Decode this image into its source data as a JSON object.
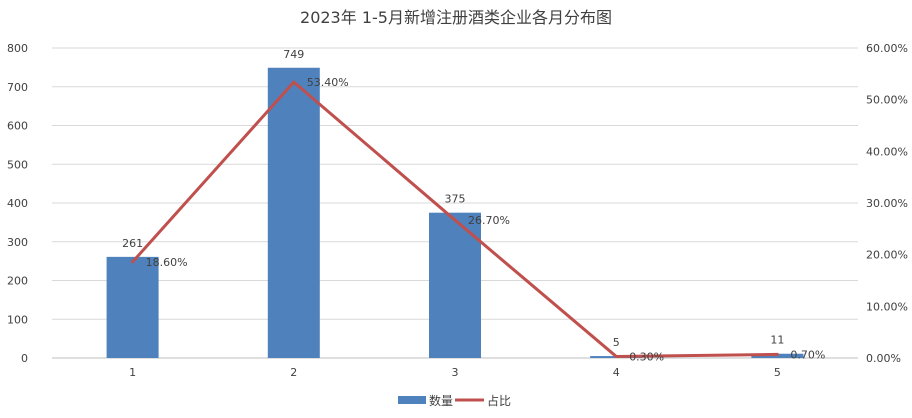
{
  "chart_data": {
    "type": "bar",
    "title": "2023年 1-5月新增注册酒类企业各月分布图",
    "categories": [
      "1",
      "2",
      "3",
      "4",
      "5"
    ],
    "series": [
      {
        "name": "数量",
        "type": "bar",
        "axis": "left",
        "values": [
          261,
          749,
          375,
          5,
          11
        ],
        "labels": [
          "261",
          "749",
          "375",
          "5",
          "11"
        ],
        "color": "#4F81BD"
      },
      {
        "name": "占比",
        "type": "line",
        "axis": "right",
        "values": [
          0.186,
          0.534,
          0.267,
          0.003,
          0.007
        ],
        "labels": [
          "18.60%",
          "53.40%",
          "26.70%",
          "0.30%",
          "0.70%"
        ],
        "color": "#C0504D"
      }
    ],
    "y_left": {
      "ylim": [
        0,
        800
      ],
      "ticks": [
        "0",
        "100",
        "200",
        "300",
        "400",
        "500",
        "600",
        "700",
        "800"
      ]
    },
    "y_right": {
      "ylim": [
        0,
        0.6
      ],
      "ticks": [
        "0.00%",
        "10.00%",
        "20.00%",
        "30.00%",
        "40.00%",
        "50.00%",
        "60.00%"
      ]
    },
    "grid": true,
    "legend": "bottom"
  }
}
